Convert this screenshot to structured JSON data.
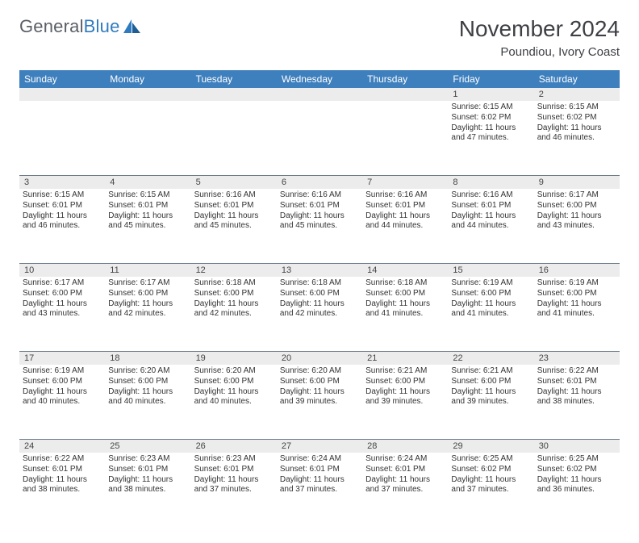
{
  "brand": {
    "part1": "General",
    "part2": "Blue"
  },
  "title": "November 2024",
  "subtitle": "Poundiou, Ivory Coast",
  "colors": {
    "header_bg": "#3e7fbd",
    "header_text": "#ffffff",
    "daynum_bg": "#ececec",
    "rule": "#6c7b8a",
    "text": "#333333",
    "logo_gray": "#5a5f66",
    "logo_blue": "#2f7bbf",
    "background": "#ffffff"
  },
  "weekdays": [
    "Sunday",
    "Monday",
    "Tuesday",
    "Wednesday",
    "Thursday",
    "Friday",
    "Saturday"
  ],
  "weeks": [
    {
      "nums": [
        "",
        "",
        "",
        "",
        "",
        "1",
        "2"
      ],
      "cells": [
        null,
        null,
        null,
        null,
        null,
        {
          "sunrise": "Sunrise: 6:15 AM",
          "sunset": "Sunset: 6:02 PM",
          "day1": "Daylight: 11 hours",
          "day2": "and 47 minutes."
        },
        {
          "sunrise": "Sunrise: 6:15 AM",
          "sunset": "Sunset: 6:02 PM",
          "day1": "Daylight: 11 hours",
          "day2": "and 46 minutes."
        }
      ]
    },
    {
      "nums": [
        "3",
        "4",
        "5",
        "6",
        "7",
        "8",
        "9"
      ],
      "cells": [
        {
          "sunrise": "Sunrise: 6:15 AM",
          "sunset": "Sunset: 6:01 PM",
          "day1": "Daylight: 11 hours",
          "day2": "and 46 minutes."
        },
        {
          "sunrise": "Sunrise: 6:15 AM",
          "sunset": "Sunset: 6:01 PM",
          "day1": "Daylight: 11 hours",
          "day2": "and 45 minutes."
        },
        {
          "sunrise": "Sunrise: 6:16 AM",
          "sunset": "Sunset: 6:01 PM",
          "day1": "Daylight: 11 hours",
          "day2": "and 45 minutes."
        },
        {
          "sunrise": "Sunrise: 6:16 AM",
          "sunset": "Sunset: 6:01 PM",
          "day1": "Daylight: 11 hours",
          "day2": "and 45 minutes."
        },
        {
          "sunrise": "Sunrise: 6:16 AM",
          "sunset": "Sunset: 6:01 PM",
          "day1": "Daylight: 11 hours",
          "day2": "and 44 minutes."
        },
        {
          "sunrise": "Sunrise: 6:16 AM",
          "sunset": "Sunset: 6:01 PM",
          "day1": "Daylight: 11 hours",
          "day2": "and 44 minutes."
        },
        {
          "sunrise": "Sunrise: 6:17 AM",
          "sunset": "Sunset: 6:00 PM",
          "day1": "Daylight: 11 hours",
          "day2": "and 43 minutes."
        }
      ]
    },
    {
      "nums": [
        "10",
        "11",
        "12",
        "13",
        "14",
        "15",
        "16"
      ],
      "cells": [
        {
          "sunrise": "Sunrise: 6:17 AM",
          "sunset": "Sunset: 6:00 PM",
          "day1": "Daylight: 11 hours",
          "day2": "and 43 minutes."
        },
        {
          "sunrise": "Sunrise: 6:17 AM",
          "sunset": "Sunset: 6:00 PM",
          "day1": "Daylight: 11 hours",
          "day2": "and 42 minutes."
        },
        {
          "sunrise": "Sunrise: 6:18 AM",
          "sunset": "Sunset: 6:00 PM",
          "day1": "Daylight: 11 hours",
          "day2": "and 42 minutes."
        },
        {
          "sunrise": "Sunrise: 6:18 AM",
          "sunset": "Sunset: 6:00 PM",
          "day1": "Daylight: 11 hours",
          "day2": "and 42 minutes."
        },
        {
          "sunrise": "Sunrise: 6:18 AM",
          "sunset": "Sunset: 6:00 PM",
          "day1": "Daylight: 11 hours",
          "day2": "and 41 minutes."
        },
        {
          "sunrise": "Sunrise: 6:19 AM",
          "sunset": "Sunset: 6:00 PM",
          "day1": "Daylight: 11 hours",
          "day2": "and 41 minutes."
        },
        {
          "sunrise": "Sunrise: 6:19 AM",
          "sunset": "Sunset: 6:00 PM",
          "day1": "Daylight: 11 hours",
          "day2": "and 41 minutes."
        }
      ]
    },
    {
      "nums": [
        "17",
        "18",
        "19",
        "20",
        "21",
        "22",
        "23"
      ],
      "cells": [
        {
          "sunrise": "Sunrise: 6:19 AM",
          "sunset": "Sunset: 6:00 PM",
          "day1": "Daylight: 11 hours",
          "day2": "and 40 minutes."
        },
        {
          "sunrise": "Sunrise: 6:20 AM",
          "sunset": "Sunset: 6:00 PM",
          "day1": "Daylight: 11 hours",
          "day2": "and 40 minutes."
        },
        {
          "sunrise": "Sunrise: 6:20 AM",
          "sunset": "Sunset: 6:00 PM",
          "day1": "Daylight: 11 hours",
          "day2": "and 40 minutes."
        },
        {
          "sunrise": "Sunrise: 6:20 AM",
          "sunset": "Sunset: 6:00 PM",
          "day1": "Daylight: 11 hours",
          "day2": "and 39 minutes."
        },
        {
          "sunrise": "Sunrise: 6:21 AM",
          "sunset": "Sunset: 6:00 PM",
          "day1": "Daylight: 11 hours",
          "day2": "and 39 minutes."
        },
        {
          "sunrise": "Sunrise: 6:21 AM",
          "sunset": "Sunset: 6:00 PM",
          "day1": "Daylight: 11 hours",
          "day2": "and 39 minutes."
        },
        {
          "sunrise": "Sunrise: 6:22 AM",
          "sunset": "Sunset: 6:01 PM",
          "day1": "Daylight: 11 hours",
          "day2": "and 38 minutes."
        }
      ]
    },
    {
      "nums": [
        "24",
        "25",
        "26",
        "27",
        "28",
        "29",
        "30"
      ],
      "cells": [
        {
          "sunrise": "Sunrise: 6:22 AM",
          "sunset": "Sunset: 6:01 PM",
          "day1": "Daylight: 11 hours",
          "day2": "and 38 minutes."
        },
        {
          "sunrise": "Sunrise: 6:23 AM",
          "sunset": "Sunset: 6:01 PM",
          "day1": "Daylight: 11 hours",
          "day2": "and 38 minutes."
        },
        {
          "sunrise": "Sunrise: 6:23 AM",
          "sunset": "Sunset: 6:01 PM",
          "day1": "Daylight: 11 hours",
          "day2": "and 37 minutes."
        },
        {
          "sunrise": "Sunrise: 6:24 AM",
          "sunset": "Sunset: 6:01 PM",
          "day1": "Daylight: 11 hours",
          "day2": "and 37 minutes."
        },
        {
          "sunrise": "Sunrise: 6:24 AM",
          "sunset": "Sunset: 6:01 PM",
          "day1": "Daylight: 11 hours",
          "day2": "and 37 minutes."
        },
        {
          "sunrise": "Sunrise: 6:25 AM",
          "sunset": "Sunset: 6:02 PM",
          "day1": "Daylight: 11 hours",
          "day2": "and 37 minutes."
        },
        {
          "sunrise": "Sunrise: 6:25 AM",
          "sunset": "Sunset: 6:02 PM",
          "day1": "Daylight: 11 hours",
          "day2": "and 36 minutes."
        }
      ]
    }
  ]
}
